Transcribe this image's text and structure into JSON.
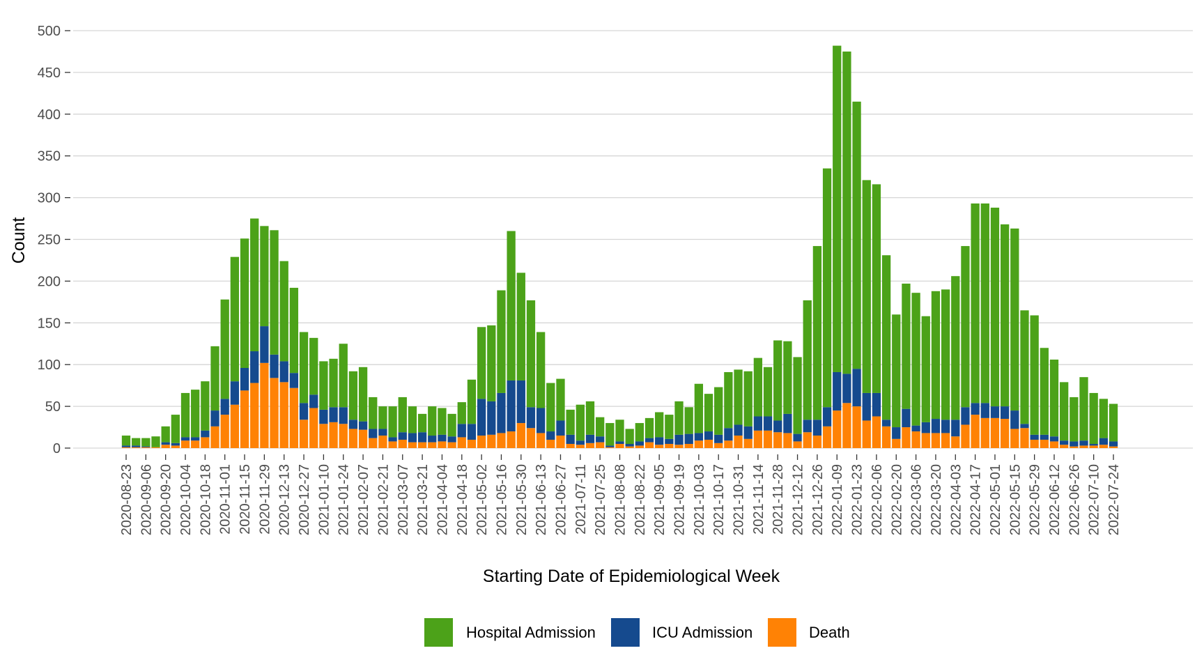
{
  "colors": {
    "hospital": "#4ca219",
    "icu": "#154a8e",
    "death": "#ff8205",
    "gridline": "#d6d6d6",
    "tick_text": "#4d4d4d"
  },
  "chart_data": {
    "type": "bar",
    "stacked": true,
    "xlabel": "Starting Date of Epidemiological Week",
    "ylabel": "Count",
    "ylim": [
      0,
      500
    ],
    "yticks": [
      "0",
      "50",
      "100",
      "150",
      "200",
      "250",
      "300",
      "350",
      "400",
      "450",
      "500"
    ],
    "grid": "horizontal",
    "legend_position": "bottom",
    "categories": [
      "2020-08-23",
      "2020-08-30",
      "2020-09-06",
      "2020-09-13",
      "2020-09-20",
      "2020-09-27",
      "2020-10-04",
      "2020-10-11",
      "2020-10-18",
      "2020-10-25",
      "2020-11-01",
      "2020-11-08",
      "2020-11-15",
      "2020-11-22",
      "2020-11-29",
      "2020-12-06",
      "2020-12-13",
      "2020-12-20",
      "2020-12-27",
      "2021-01-03",
      "2021-01-10",
      "2021-01-17",
      "2021-01-24",
      "2021-01-31",
      "2021-02-07",
      "2021-02-14",
      "2021-02-21",
      "2021-02-28",
      "2021-03-07",
      "2021-03-14",
      "2021-03-21",
      "2021-03-28",
      "2021-04-04",
      "2021-04-11",
      "2021-04-18",
      "2021-04-25",
      "2021-05-02",
      "2021-05-09",
      "2021-05-16",
      "2021-05-23",
      "2021-05-30",
      "2021-06-06",
      "2021-06-13",
      "2021-06-20",
      "2021-06-27",
      "2021-07-04",
      "2021-07-11",
      "2021-07-18",
      "2021-07-25",
      "2021-08-01",
      "2021-08-08",
      "2021-08-15",
      "2021-08-22",
      "2021-08-29",
      "2021-09-05",
      "2021-09-12",
      "2021-09-19",
      "2021-09-26",
      "2021-10-03",
      "2021-10-10",
      "2021-10-17",
      "2021-10-24",
      "2021-10-31",
      "2021-11-07",
      "2021-11-14",
      "2021-11-21",
      "2021-11-28",
      "2021-12-05",
      "2021-12-12",
      "2021-12-19",
      "2021-12-26",
      "2022-01-02",
      "2022-01-09",
      "2022-01-16",
      "2022-01-23",
      "2022-01-30",
      "2022-02-06",
      "2022-02-13",
      "2022-02-20",
      "2022-02-27",
      "2022-03-06",
      "2022-03-13",
      "2022-03-20",
      "2022-03-27",
      "2022-04-03",
      "2022-04-10",
      "2022-04-17",
      "2022-04-24",
      "2022-05-01",
      "2022-05-08",
      "2022-05-15",
      "2022-05-22",
      "2022-05-29",
      "2022-06-05",
      "2022-06-12",
      "2022-06-19",
      "2022-06-26",
      "2022-07-03",
      "2022-07-10",
      "2022-07-17",
      "2022-07-24"
    ],
    "tick_labels": [
      "2020-08-23",
      "2020-09-06",
      "2020-09-20",
      "2020-10-04",
      "2020-10-18",
      "2020-11-01",
      "2020-11-15",
      "2020-11-29",
      "2020-12-13",
      "2020-12-27",
      "2021-01-10",
      "2021-01-24",
      "2021-02-07",
      "2021-02-21",
      "2021-03-07",
      "2021-03-21",
      "2021-04-04",
      "2021-04-18",
      "2021-05-02",
      "2021-05-16",
      "2021-05-30",
      "2021-06-13",
      "2021-06-27",
      "2021-07-11",
      "2021-07-25",
      "2021-08-08",
      "2021-08-22",
      "2021-09-05",
      "2021-09-19",
      "2021-10-03",
      "2021-10-17",
      "2021-10-31",
      "2021-11-14",
      "2021-11-28",
      "2021-12-12",
      "2021-12-26",
      "2022-01-09",
      "2022-01-23",
      "2022-02-06",
      "2022-02-20",
      "2022-03-06",
      "2022-03-20",
      "2022-04-03",
      "2022-04-17",
      "2022-05-01",
      "2022-05-15",
      "2022-05-29",
      "2022-06-12",
      "2022-06-26",
      "2022-07-10",
      "2022-07-24"
    ],
    "series": [
      {
        "name": "Death",
        "color_key": "death",
        "values": [
          1,
          1,
          1,
          1,
          4,
          3,
          9,
          9,
          13,
          26,
          40,
          52,
          69,
          78,
          102,
          84,
          79,
          72,
          34,
          48,
          29,
          31,
          29,
          23,
          22,
          12,
          15,
          8,
          10,
          7,
          7,
          7,
          8,
          7,
          13,
          10,
          15,
          16,
          18,
          20,
          30,
          24,
          18,
          10,
          15,
          5,
          4,
          6,
          7,
          1,
          5,
          2,
          3,
          7,
          4,
          5,
          4,
          5,
          9,
          10,
          6,
          9,
          15,
          11,
          21,
          21,
          19,
          18,
          8,
          19,
          15,
          26,
          45,
          54,
          50,
          33,
          38,
          26,
          11,
          25,
          20,
          18,
          18,
          18,
          14,
          28,
          40,
          36,
          36,
          35,
          23,
          24,
          10,
          10,
          8,
          4,
          2,
          3,
          3,
          4,
          2
        ]
      },
      {
        "name": "ICU Admission",
        "color_key": "icu",
        "values": [
          2,
          2,
          1,
          0,
          3,
          3,
          4,
          4,
          8,
          19,
          19,
          28,
          27,
          38,
          44,
          28,
          25,
          18,
          20,
          16,
          17,
          18,
          20,
          11,
          10,
          11,
          8,
          5,
          9,
          11,
          12,
          8,
          8,
          7,
          16,
          19,
          44,
          40,
          48,
          61,
          51,
          25,
          30,
          10,
          18,
          11,
          5,
          10,
          7,
          2,
          3,
          3,
          5,
          5,
          9,
          6,
          12,
          12,
          9,
          10,
          10,
          15,
          13,
          15,
          17,
          17,
          14,
          23,
          9,
          15,
          19,
          23,
          46,
          35,
          45,
          33,
          28,
          8,
          14,
          22,
          7,
          13,
          17,
          16,
          20,
          21,
          14,
          18,
          14,
          15,
          22,
          5,
          6,
          6,
          6,
          5,
          6,
          6,
          2,
          8,
          6
        ]
      },
      {
        "name": "Hospital Admission",
        "color_key": "hospital",
        "values": [
          12,
          9,
          10,
          13,
          19,
          34,
          53,
          57,
          59,
          77,
          119,
          149,
          155,
          159,
          120,
          149,
          120,
          102,
          85,
          68,
          58,
          58,
          76,
          58,
          65,
          38,
          27,
          37,
          42,
          32,
          22,
          35,
          32,
          27,
          26,
          53,
          86,
          91,
          123,
          179,
          129,
          128,
          91,
          58,
          50,
          30,
          43,
          40,
          23,
          27,
          26,
          18,
          22,
          24,
          30,
          29,
          40,
          32,
          59,
          45,
          57,
          67,
          66,
          66,
          70,
          59,
          96,
          87,
          92,
          143,
          208,
          286,
          391,
          386,
          320,
          255,
          250,
          197,
          135,
          150,
          159,
          127,
          153,
          156,
          172,
          193,
          239,
          239,
          238,
          218,
          218,
          136,
          143,
          104,
          92,
          70,
          53,
          76,
          61,
          47,
          45
        ]
      }
    ]
  }
}
